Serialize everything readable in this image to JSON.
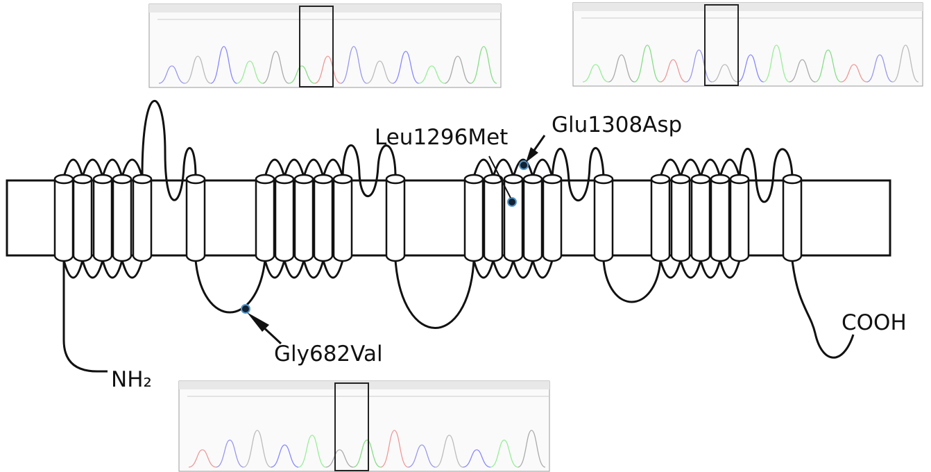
{
  "labels": {
    "leu": "Leu1296Met",
    "glu": "Glu1308Asp",
    "gly": "Gly682Val",
    "nterm": "NH₂",
    "cterm": "COOH"
  }
}
